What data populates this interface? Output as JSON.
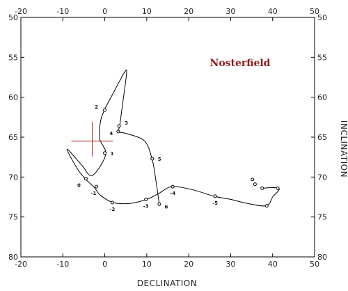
{
  "chart_data": {
    "type": "line",
    "title": "Nosterfield",
    "xlabel": "DECLINATION",
    "ylabel": "INCLINATION",
    "xlim": [
      -20,
      50
    ],
    "ylim": [
      50,
      80
    ],
    "y_inverted": true,
    "xticks": [
      -20,
      -10,
      0,
      10,
      20,
      30,
      40,
      50
    ],
    "yticks": [
      50,
      55,
      60,
      65,
      70,
      75,
      80
    ],
    "grid": false,
    "series": [
      {
        "values": [
          [
            37.2,
            71.4
          ],
          [
            41.5,
            71.4
          ],
          [
            40.0,
            72.5
          ],
          [
            38.5,
            73.6
          ],
          [
            34.0,
            73.3
          ],
          [
            30.0,
            72.8
          ],
          [
            26.0,
            72.4
          ],
          [
            21.0,
            71.6
          ],
          [
            16.0,
            71.2
          ],
          [
            13.0,
            72.0
          ],
          [
            10.0,
            72.8
          ],
          [
            6.0,
            73.3
          ],
          [
            2.0,
            73.2
          ],
          [
            -1.0,
            72.3
          ],
          [
            -2.5,
            71.3
          ],
          [
            -4.5,
            70.3
          ],
          [
            -6.5,
            69.0
          ],
          [
            -9.0,
            66.5
          ],
          [
            -5.5,
            68.5
          ],
          [
            -3.0,
            69.8
          ],
          [
            0.2,
            67.2
          ],
          [
            -1.2,
            65.2
          ],
          [
            -1.0,
            63.0
          ],
          [
            0.0,
            61.5
          ],
          [
            2.0,
            59.5
          ],
          [
            3.5,
            58.0
          ],
          [
            4.8,
            56.8
          ],
          [
            5.2,
            57.0
          ],
          [
            4.2,
            61.0
          ],
          [
            3.5,
            63.7
          ],
          [
            3.2,
            64.3
          ],
          [
            5.5,
            64.6
          ],
          [
            9.5,
            65.5
          ],
          [
            11.3,
            67.8
          ],
          [
            12.2,
            70.5
          ],
          [
            13.0,
            73.4
          ]
        ]
      }
    ],
    "markers": [
      {
        "x": 35.2,
        "y": 70.3
      },
      {
        "x": 35.8,
        "y": 70.9
      },
      {
        "x": 37.5,
        "y": 71.4
      },
      {
        "x": 41.2,
        "y": 71.4
      },
      {
        "x": 38.6,
        "y": 73.6
      },
      {
        "x": 26.3,
        "y": 72.4,
        "label": "-5"
      },
      {
        "x": 16.2,
        "y": 71.2,
        "label": "-4"
      },
      {
        "x": 9.8,
        "y": 72.8,
        "label": "-3"
      },
      {
        "x": 1.8,
        "y": 73.2,
        "label": "-2"
      },
      {
        "x": -2.0,
        "y": 71.2,
        "label": "-1"
      },
      {
        "x": -4.5,
        "y": 70.2,
        "label": "0"
      },
      {
        "x": 0.0,
        "y": 67.0,
        "label": "1"
      },
      {
        "x": 0.0,
        "y": 61.6,
        "label": "2"
      },
      {
        "x": 3.4,
        "y": 63.6,
        "label": "3"
      },
      {
        "x": 3.2,
        "y": 64.3,
        "label": "4"
      },
      {
        "x": 11.3,
        "y": 67.7,
        "label": "5"
      },
      {
        "x": 13.0,
        "y": 73.4,
        "label": "6"
      }
    ],
    "reference_cross": {
      "x": -3.0,
      "y": 65.5
    },
    "colors": {
      "curve": "#000000",
      "cross": "#b22222",
      "title": "#8b1a1a"
    }
  }
}
